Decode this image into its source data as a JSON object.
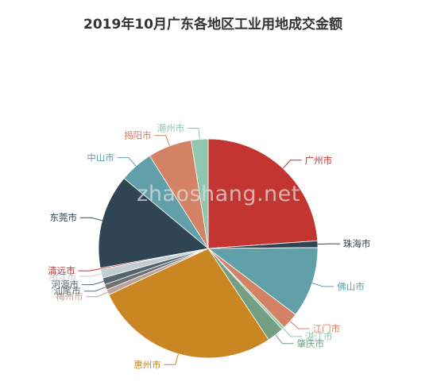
{
  "chart_data": {
    "type": "pie",
    "title": "2019年10月广东各地区工业用地成交金额",
    "slices": [
      {
        "name": "广州市",
        "value": 24.0,
        "color": "#c23531"
      },
      {
        "name": "珠海市",
        "value": 1.0,
        "color": "#2f4554"
      },
      {
        "name": "佛山市",
        "value": 10.5,
        "color": "#61a0a8"
      },
      {
        "name": "江门市",
        "value": 2.5,
        "color": "#d48265"
      },
      {
        "name": "湛江市",
        "value": 0.4,
        "color": "#91c7ae"
      },
      {
        "name": "肇庆市",
        "value": 2.5,
        "color": "#749f83"
      },
      {
        "name": "惠州市",
        "value": 27.5,
        "color": "#ca8622"
      },
      {
        "name": "梅州市",
        "value": 0.8,
        "color": "#bda29a"
      },
      {
        "name": "汕尾市",
        "value": 0.8,
        "color": "#6e7074"
      },
      {
        "name": "河源市",
        "value": 1.0,
        "color": "#546570"
      },
      {
        "name": "阳江市",
        "value": 1.3,
        "color": "#c4ccd3"
      },
      {
        "name": "清远市",
        "value": 0.2,
        "color": "#c23531"
      },
      {
        "name": "东莞市",
        "value": 14.0,
        "color": "#2f4554"
      },
      {
        "name": "中山市",
        "value": 5.0,
        "color": "#61a0a8"
      },
      {
        "name": "揭阳市",
        "value": 6.5,
        "color": "#d48265"
      },
      {
        "name": "潮州市",
        "value": 2.5,
        "color": "#91c7ae"
      }
    ]
  },
  "watermark": "zhaoshang.net"
}
